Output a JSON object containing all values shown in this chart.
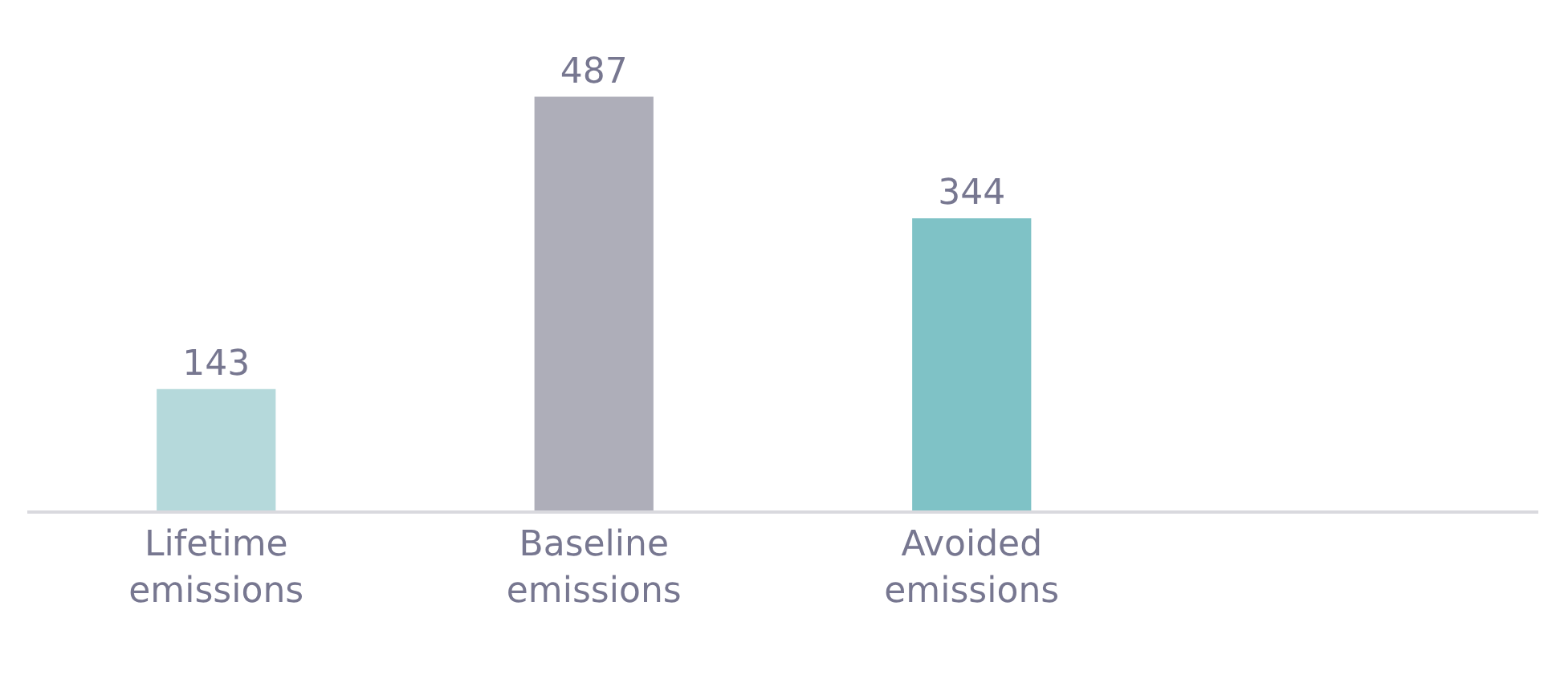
{
  "chart_data": {
    "type": "bar",
    "categories": [
      "Lifetime emissions",
      "Baseline emissions",
      "Avoided emissions",
      null
    ],
    "values": [
      143,
      487,
      344,
      null
    ],
    "colors": [
      "#b5d9db",
      "#aeaeb9",
      "#7fc2c6",
      "#7fc2c6"
    ],
    "data_labels": true
  }
}
